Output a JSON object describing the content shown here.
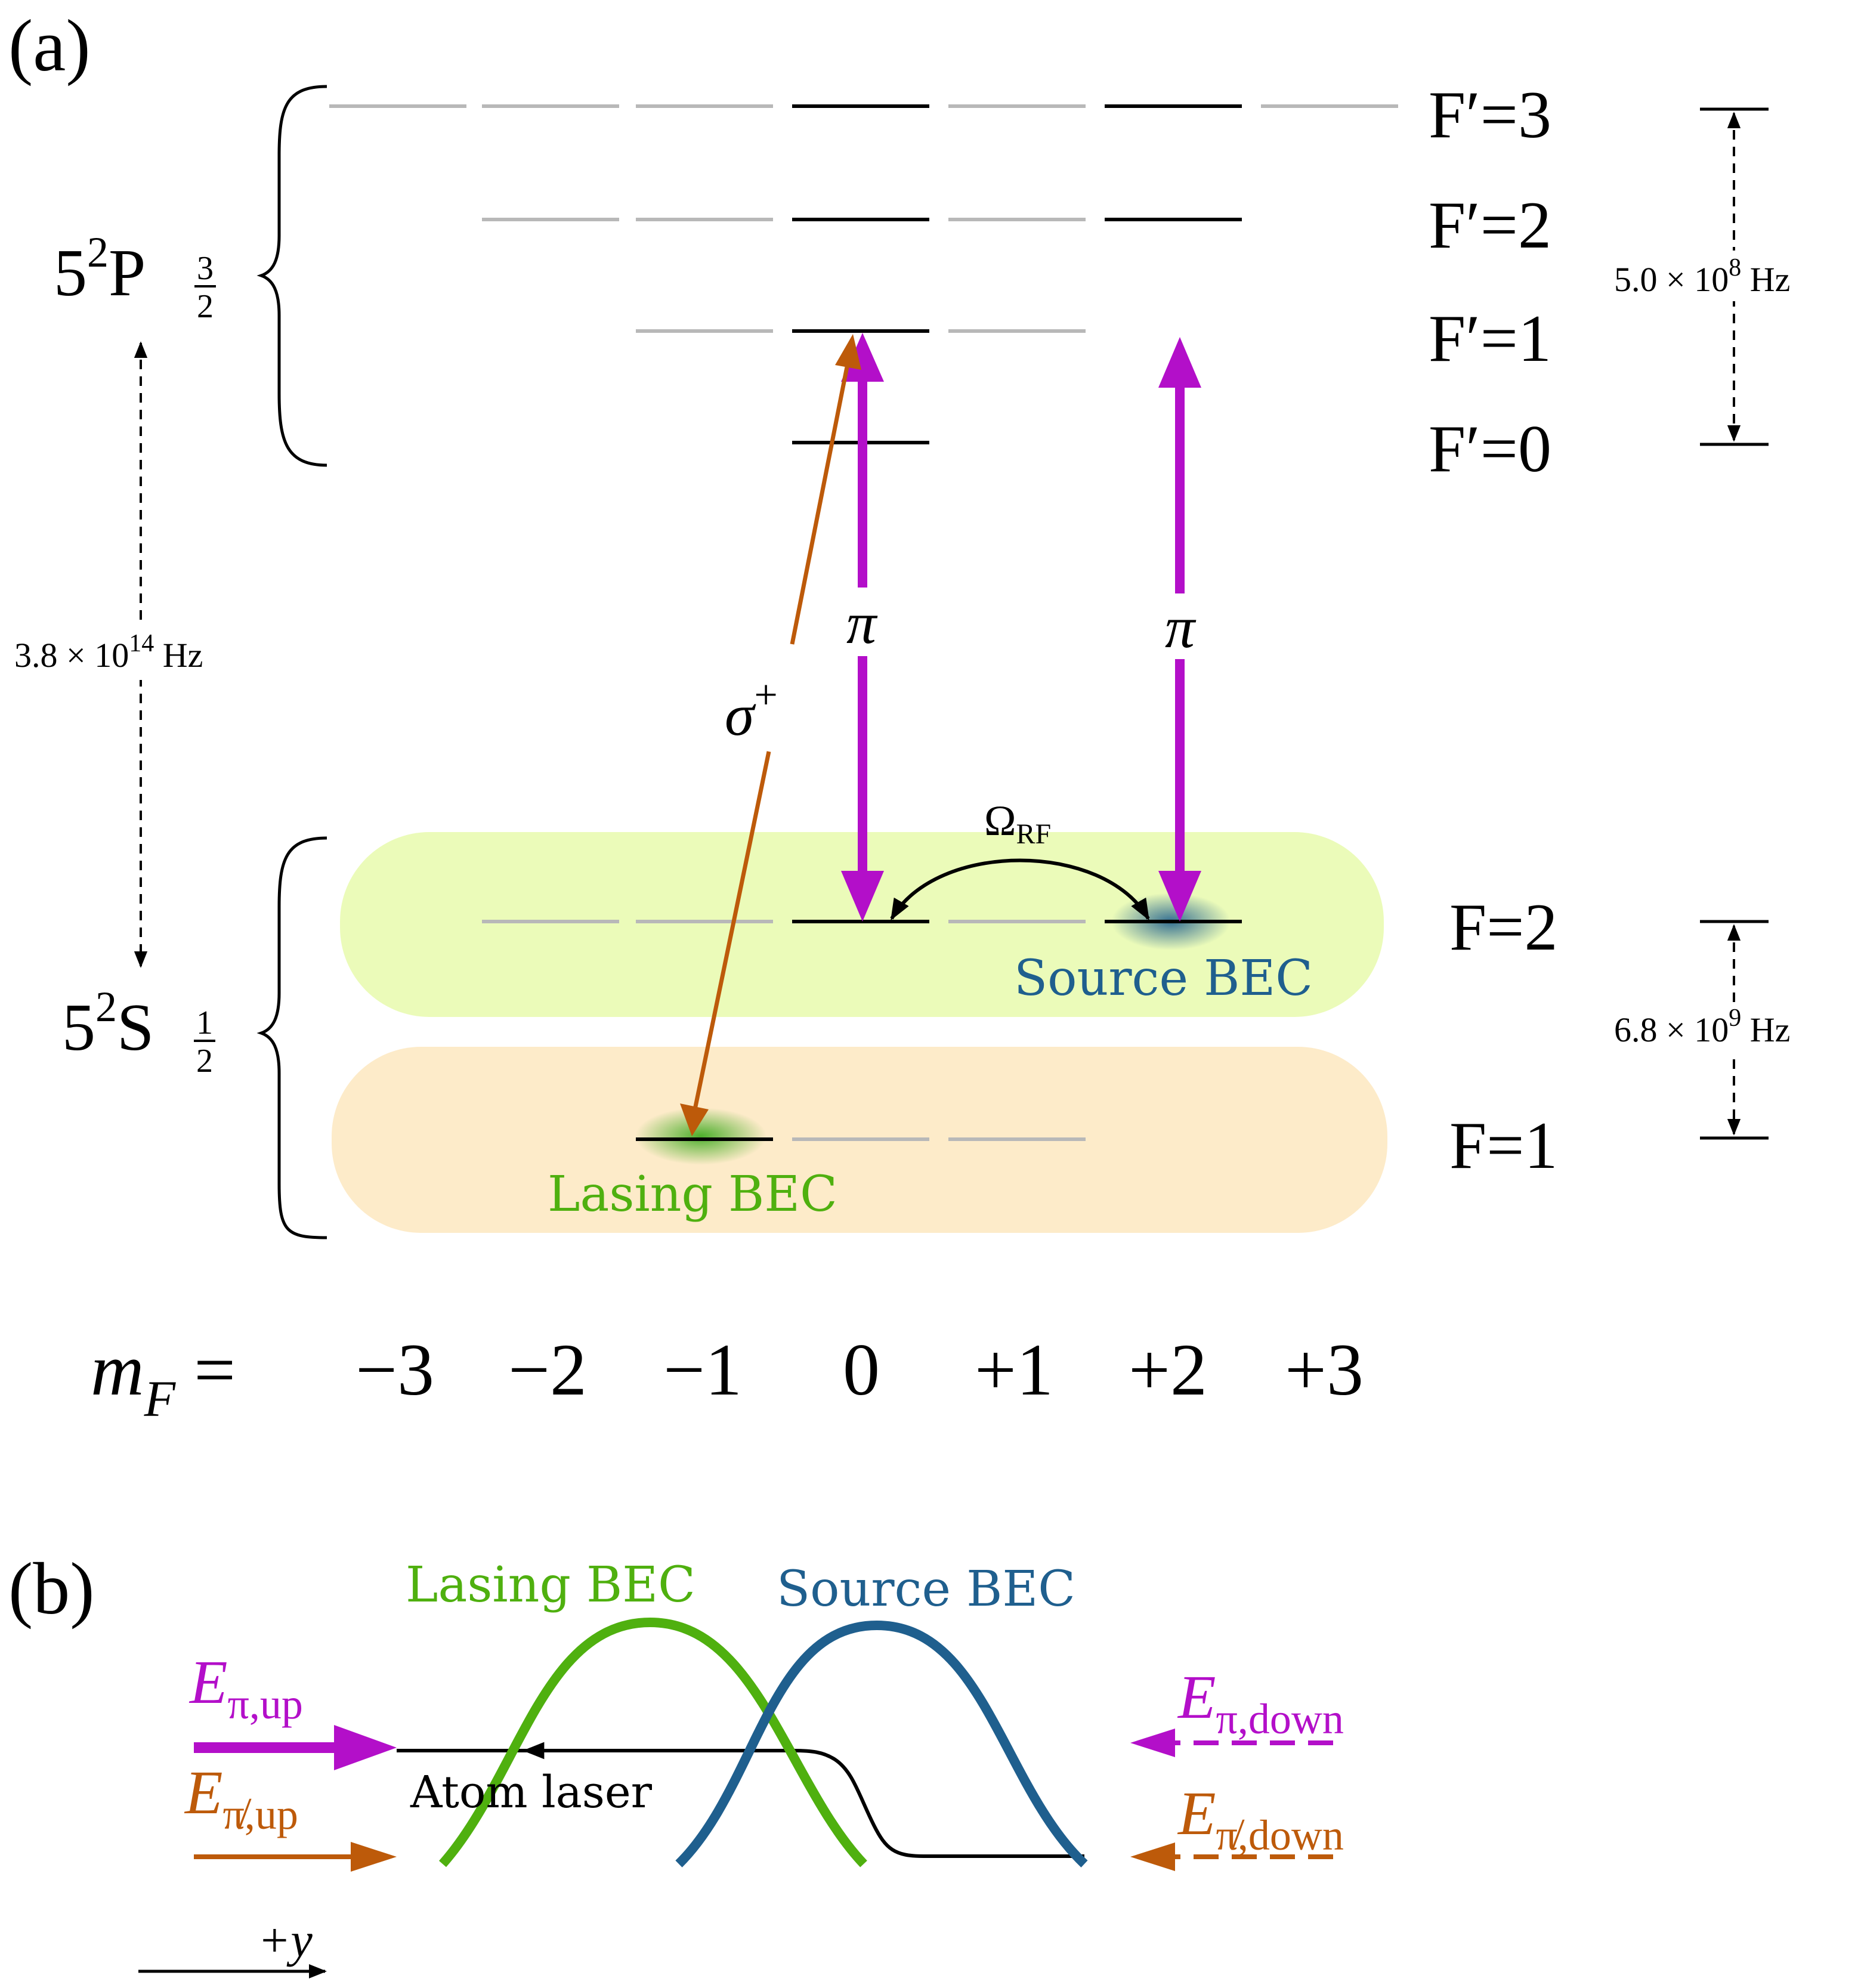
{
  "panel_a": {
    "label": "(a)",
    "upper_manifold": {
      "main": "5",
      "sup": "2",
      "letter": "P",
      "sub_num": "3",
      "sub_den": "2"
    },
    "lower_manifold": {
      "main": "5",
      "sup": "2",
      "letter": "S",
      "sub_num": "1",
      "sub_den": "2"
    },
    "optical_gap": {
      "mant": "3.8 × 10",
      "exp": "14",
      "unit": " Hz"
    },
    "excited_hf_span": {
      "mant": "5.0 × 10",
      "exp": "8",
      "unit": " Hz"
    },
    "ground_hf_span": {
      "mant": "6.8 × 10",
      "exp": "9",
      "unit": " Hz"
    },
    "excited_levels": [
      "F′=3",
      "F′=2",
      "F′=1",
      "F′=0"
    ],
    "ground_levels": [
      "F=2",
      "F=1"
    ],
    "mf_label": {
      "m": "m",
      "sub": "F",
      "eq": " = "
    },
    "mf_values": [
      "−3",
      "−2",
      "−1",
      "0",
      "+1",
      "+2",
      "+3"
    ],
    "pi_label": "π",
    "sigma_label": {
      "base": "σ",
      "sup": "+"
    },
    "rf_label": {
      "base": "Ω",
      "sub": "RF"
    },
    "source_bec": "Source BEC",
    "lasing_bec": "Lasing BEC"
  },
  "panel_b": {
    "label": "(b)",
    "lasing_bec": "Lasing BEC",
    "source_bec": "Source BEC",
    "e_pi_up": {
      "base": "E",
      "sub": "π,up"
    },
    "e_pi_down": {
      "base": "E",
      "sub": "π,down"
    },
    "e_npi_up": {
      "base": "E",
      "sub": "π̸,up"
    },
    "e_npi_down": {
      "base": "E",
      "sub": "π̸,down"
    },
    "atom_laser": "Atom laser",
    "axis_label": "+y"
  },
  "colors": {
    "magenta": "#b30fc9",
    "orange": "#bd5a0a",
    "green": "#4fb00f",
    "blue": "#1f5f8e",
    "gray_level": "#b8b8b8",
    "yellow_band": "#ebfbb9",
    "peach_band": "#fdebc9"
  }
}
